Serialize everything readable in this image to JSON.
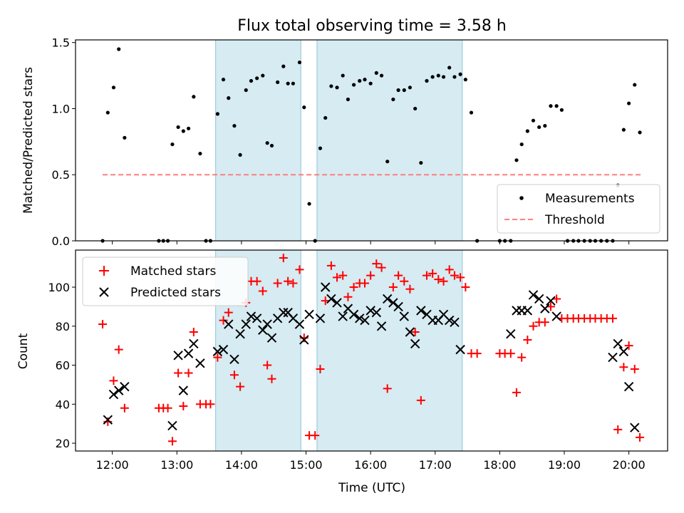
{
  "chart_data": [
    {
      "type": "scatter",
      "title": "Flux total observing time = 3.58 h",
      "xlabel": "",
      "ylabel": "Matched/Predicted stars",
      "xlim": [
        11.43,
        20.6
      ],
      "ylim": [
        0,
        1.52
      ],
      "yticks": [
        0.0,
        0.5,
        1.0,
        1.5
      ],
      "yticklabels": [
        "0.0",
        "0.5",
        "1.0",
        "1.5"
      ],
      "shaded_intervals": [
        [
          13.6,
          14.92
        ],
        [
          15.17,
          17.42
        ]
      ],
      "threshold": {
        "name": "Threshold",
        "y": 0.5,
        "x_range": [
          11.85,
          20.2
        ],
        "color": "#ff7f7f"
      },
      "legend": {
        "position": "lower right",
        "entries": [
          "Measurements",
          "Threshold"
        ]
      },
      "series": [
        {
          "name": "Measurements",
          "marker": "dot",
          "color": "#000000",
          "points": [
            [
              11.85,
              0.0
            ],
            [
              11.93,
              0.97
            ],
            [
              12.02,
              1.16
            ],
            [
              12.1,
              1.45
            ],
            [
              12.19,
              0.78
            ],
            [
              12.72,
              0.0
            ],
            [
              12.79,
              0.0
            ],
            [
              12.86,
              0.0
            ],
            [
              12.93,
              0.73
            ],
            [
              13.02,
              0.86
            ],
            [
              13.1,
              0.83
            ],
            [
              13.18,
              0.85
            ],
            [
              13.26,
              1.09
            ],
            [
              13.36,
              0.66
            ],
            [
              13.45,
              0.0
            ],
            [
              13.52,
              0.0
            ],
            [
              13.63,
              0.96
            ],
            [
              13.72,
              1.22
            ],
            [
              13.8,
              1.08
            ],
            [
              13.89,
              0.87
            ],
            [
              13.98,
              0.65
            ],
            [
              14.07,
              1.14
            ],
            [
              14.15,
              1.21
            ],
            [
              14.24,
              1.23
            ],
            [
              14.33,
              1.25
            ],
            [
              14.4,
              0.74
            ],
            [
              14.47,
              0.72
            ],
            [
              14.56,
              1.2
            ],
            [
              14.65,
              1.32
            ],
            [
              14.72,
              1.19
            ],
            [
              14.8,
              1.19
            ],
            [
              14.9,
              1.35
            ],
            [
              14.97,
              1.01
            ],
            [
              15.05,
              0.28
            ],
            [
              15.14,
              0.0
            ],
            [
              15.22,
              0.7
            ],
            [
              15.3,
              0.93
            ],
            [
              15.39,
              1.17
            ],
            [
              15.48,
              1.16
            ],
            [
              15.57,
              1.25
            ],
            [
              15.65,
              1.07
            ],
            [
              15.74,
              1.18
            ],
            [
              15.83,
              1.21
            ],
            [
              15.91,
              1.22
            ],
            [
              16.0,
              1.19
            ],
            [
              16.09,
              1.27
            ],
            [
              16.17,
              1.25
            ],
            [
              16.26,
              0.6
            ],
            [
              16.35,
              1.07
            ],
            [
              16.43,
              1.14
            ],
            [
              16.52,
              1.14
            ],
            [
              16.61,
              1.16
            ],
            [
              16.69,
              1.0
            ],
            [
              16.78,
              0.59
            ],
            [
              16.87,
              1.21
            ],
            [
              16.96,
              1.24
            ],
            [
              17.05,
              1.25
            ],
            [
              17.13,
              1.24
            ],
            [
              17.22,
              1.31
            ],
            [
              17.3,
              1.24
            ],
            [
              17.39,
              1.26
            ],
            [
              17.47,
              1.22
            ],
            [
              17.56,
              0.97
            ],
            [
              17.65,
              0.0
            ],
            [
              18.0,
              0.0
            ],
            [
              18.08,
              0.0
            ],
            [
              18.17,
              0.0
            ],
            [
              18.26,
              0.61
            ],
            [
              18.34,
              0.73
            ],
            [
              18.43,
              0.83
            ],
            [
              18.52,
              0.91
            ],
            [
              18.61,
              0.86
            ],
            [
              18.7,
              0.87
            ],
            [
              18.79,
              1.02
            ],
            [
              18.88,
              1.02
            ],
            [
              18.96,
              0.99
            ],
            [
              19.05,
              0.0
            ],
            [
              19.14,
              0.0
            ],
            [
              19.22,
              0.0
            ],
            [
              19.31,
              0.0
            ],
            [
              19.4,
              0.0
            ],
            [
              19.48,
              0.0
            ],
            [
              19.57,
              0.0
            ],
            [
              19.66,
              0.0
            ],
            [
              19.75,
              0.0
            ],
            [
              19.83,
              0.42
            ],
            [
              19.92,
              0.84
            ],
            [
              20.0,
              1.04
            ],
            [
              20.09,
              1.18
            ],
            [
              20.17,
              0.82
            ]
          ]
        }
      ]
    },
    {
      "type": "scatter",
      "title": "",
      "xlabel": "Time (UTC)",
      "ylabel": "Count",
      "xlim": [
        11.43,
        20.6
      ],
      "ylim": [
        16,
        119
      ],
      "yticks": [
        20,
        40,
        60,
        80,
        100
      ],
      "yticklabels": [
        "20",
        "40",
        "60",
        "80",
        "100"
      ],
      "xticks": [
        12,
        13,
        14,
        15,
        16,
        17,
        18,
        19,
        20
      ],
      "xticklabels": [
        "12:00",
        "13:00",
        "14:00",
        "15:00",
        "16:00",
        "17:00",
        "18:00",
        "19:00",
        "20:00"
      ],
      "shaded_intervals": [
        [
          13.6,
          14.92
        ],
        [
          15.17,
          17.42
        ]
      ],
      "legend": {
        "position": "upper left",
        "entries": [
          "Matched stars",
          "Predicted stars"
        ]
      },
      "series": [
        {
          "name": "Matched stars",
          "marker": "plus",
          "color": "#ff0000",
          "points": [
            [
              11.85,
              81
            ],
            [
              11.93,
              31
            ],
            [
              12.02,
              52
            ],
            [
              12.1,
              68
            ],
            [
              12.19,
              38
            ],
            [
              12.72,
              38
            ],
            [
              12.79,
              38
            ],
            [
              12.86,
              38
            ],
            [
              12.93,
              21
            ],
            [
              13.02,
              56
            ],
            [
              13.1,
              39
            ],
            [
              13.18,
              56
            ],
            [
              13.26,
              77
            ],
            [
              13.36,
              40
            ],
            [
              13.45,
              40
            ],
            [
              13.52,
              40
            ],
            [
              13.63,
              64
            ],
            [
              13.72,
              83
            ],
            [
              13.8,
              87
            ],
            [
              13.89,
              55
            ],
            [
              13.98,
              49
            ],
            [
              14.07,
              92
            ],
            [
              14.15,
              103
            ],
            [
              14.24,
              103
            ],
            [
              14.33,
              98
            ],
            [
              14.4,
              60
            ],
            [
              14.47,
              53
            ],
            [
              14.56,
              102
            ],
            [
              14.65,
              115
            ],
            [
              14.72,
              103
            ],
            [
              14.8,
              102
            ],
            [
              14.9,
              109
            ],
            [
              14.97,
              74
            ],
            [
              15.05,
              24
            ],
            [
              15.14,
              24
            ],
            [
              15.22,
              58
            ],
            [
              15.3,
              93
            ],
            [
              15.39,
              111
            ],
            [
              15.48,
              105
            ],
            [
              15.57,
              106
            ],
            [
              15.65,
              95
            ],
            [
              15.74,
              100
            ],
            [
              15.83,
              102
            ],
            [
              15.91,
              102
            ],
            [
              16.0,
              106
            ],
            [
              16.09,
              112
            ],
            [
              16.17,
              110
            ],
            [
              16.26,
              48
            ],
            [
              16.35,
              100
            ],
            [
              16.43,
              106
            ],
            [
              16.52,
              103
            ],
            [
              16.61,
              99
            ],
            [
              16.69,
              77
            ],
            [
              16.78,
              42
            ],
            [
              16.87,
              106
            ],
            [
              16.96,
              107
            ],
            [
              17.05,
              104
            ],
            [
              17.13,
              103
            ],
            [
              17.22,
              109
            ],
            [
              17.3,
              106
            ],
            [
              17.39,
              105
            ],
            [
              17.47,
              100
            ],
            [
              17.56,
              66
            ],
            [
              17.65,
              66
            ],
            [
              18.0,
              66
            ],
            [
              18.08,
              66
            ],
            [
              18.17,
              66
            ],
            [
              18.26,
              46
            ],
            [
              18.34,
              64
            ],
            [
              18.43,
              73
            ],
            [
              18.52,
              80
            ],
            [
              18.61,
              82
            ],
            [
              18.7,
              82
            ],
            [
              18.79,
              90
            ],
            [
              18.88,
              94
            ],
            [
              18.96,
              84
            ],
            [
              19.05,
              84
            ],
            [
              19.14,
              84
            ],
            [
              19.22,
              84
            ],
            [
              19.31,
              84
            ],
            [
              19.4,
              84
            ],
            [
              19.48,
              84
            ],
            [
              19.57,
              84
            ],
            [
              19.66,
              84
            ],
            [
              19.75,
              84
            ],
            [
              19.83,
              27
            ],
            [
              19.92,
              59
            ],
            [
              20.0,
              70
            ],
            [
              20.09,
              58
            ],
            [
              20.17,
              23
            ]
          ]
        },
        {
          "name": "Predicted stars",
          "marker": "x",
          "color": "#000000",
          "points": [
            [
              11.93,
              32
            ],
            [
              12.02,
              45
            ],
            [
              12.1,
              47
            ],
            [
              12.19,
              49
            ],
            [
              12.93,
              29
            ],
            [
              13.02,
              65
            ],
            [
              13.1,
              47
            ],
            [
              13.18,
              66
            ],
            [
              13.26,
              71
            ],
            [
              13.36,
              61
            ],
            [
              13.63,
              67
            ],
            [
              13.72,
              68
            ],
            [
              13.8,
              81
            ],
            [
              13.89,
              63
            ],
            [
              13.98,
              76
            ],
            [
              14.07,
              81
            ],
            [
              14.15,
              85
            ],
            [
              14.24,
              84
            ],
            [
              14.33,
              78
            ],
            [
              14.4,
              81
            ],
            [
              14.47,
              74
            ],
            [
              14.56,
              84
            ],
            [
              14.65,
              87
            ],
            [
              14.72,
              87
            ],
            [
              14.8,
              84
            ],
            [
              14.9,
              81
            ],
            [
              14.97,
              73
            ],
            [
              15.05,
              86
            ],
            [
              15.22,
              84
            ],
            [
              15.3,
              100
            ],
            [
              15.39,
              94
            ],
            [
              15.48,
              92
            ],
            [
              15.57,
              85
            ],
            [
              15.65,
              89
            ],
            [
              15.74,
              86
            ],
            [
              15.83,
              84
            ],
            [
              15.91,
              83
            ],
            [
              16.0,
              88
            ],
            [
              16.09,
              87
            ],
            [
              16.17,
              80
            ],
            [
              16.26,
              94
            ],
            [
              16.35,
              92
            ],
            [
              16.43,
              90
            ],
            [
              16.52,
              85
            ],
            [
              16.61,
              77
            ],
            [
              16.69,
              71
            ],
            [
              16.78,
              88
            ],
            [
              16.87,
              86
            ],
            [
              16.96,
              83
            ],
            [
              17.05,
              83
            ],
            [
              17.13,
              86
            ],
            [
              17.22,
              83
            ],
            [
              17.3,
              82
            ],
            [
              17.39,
              68
            ],
            [
              18.17,
              76
            ],
            [
              18.26,
              88
            ],
            [
              18.34,
              88
            ],
            [
              18.43,
              88
            ],
            [
              18.52,
              96
            ],
            [
              18.61,
              94
            ],
            [
              18.7,
              89
            ],
            [
              18.79,
              93
            ],
            [
              18.88,
              85
            ],
            [
              19.75,
              64
            ],
            [
              19.83,
              71
            ],
            [
              19.92,
              67
            ],
            [
              20.0,
              49
            ],
            [
              20.09,
              28
            ]
          ]
        }
      ]
    }
  ]
}
